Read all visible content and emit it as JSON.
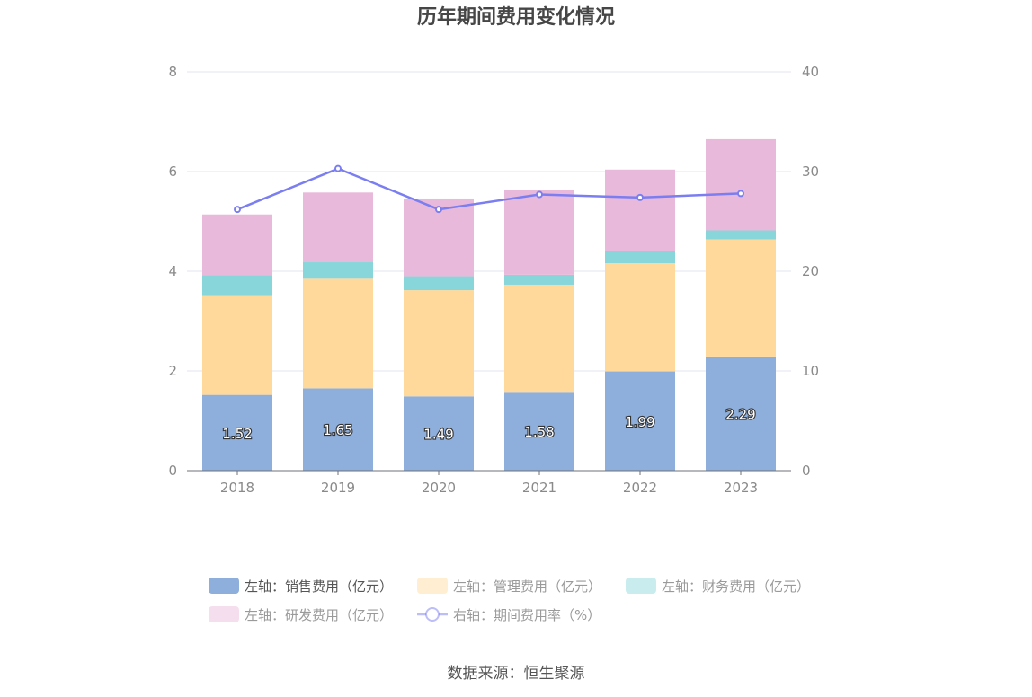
{
  "chart_data": {
    "type": "bar",
    "stacked": true,
    "title": "历年期间费用变化情况",
    "categories": [
      "2018",
      "2019",
      "2020",
      "2021",
      "2022",
      "2023"
    ],
    "y_left": {
      "min": 0,
      "max": 8,
      "ticks": [
        "0",
        "2",
        "4",
        "6",
        "8"
      ]
    },
    "y_right": {
      "min": 0,
      "max": 40,
      "ticks": [
        "0",
        "10",
        "20",
        "30",
        "40"
      ]
    },
    "grid": true,
    "legend_position": "bottom",
    "series": [
      {
        "name": "左轴：销售费用（亿元）",
        "axis": "left",
        "type": "bar",
        "color": "#8eaedb",
        "values": [
          1.52,
          1.65,
          1.49,
          1.58,
          1.99,
          2.29
        ],
        "labels": [
          "1.52",
          "1.65",
          "1.49",
          "1.58",
          "1.99",
          "2.29"
        ]
      },
      {
        "name": "左轴：管理费用（亿元）",
        "axis": "left",
        "type": "bar",
        "color": "#ffd99c",
        "values": [
          2.0,
          2.2,
          2.13,
          2.15,
          2.17,
          2.35
        ]
      },
      {
        "name": "左轴：财务费用（亿元）",
        "axis": "left",
        "type": "bar",
        "color": "#88d6da",
        "values": [
          0.4,
          0.33,
          0.28,
          0.2,
          0.25,
          0.18
        ]
      },
      {
        "name": "左轴：研发费用（亿元）",
        "axis": "left",
        "type": "bar",
        "color": "#e8b9da",
        "values": [
          1.22,
          1.4,
          1.56,
          1.7,
          1.63,
          1.83
        ]
      },
      {
        "name": "右轴：期间费用率（%）",
        "axis": "right",
        "type": "line",
        "color": "#7b7ef0",
        "values": [
          26.2,
          30.3,
          26.2,
          27.7,
          27.4,
          27.8
        ]
      }
    ],
    "source": "数据来源：恒生聚源"
  }
}
